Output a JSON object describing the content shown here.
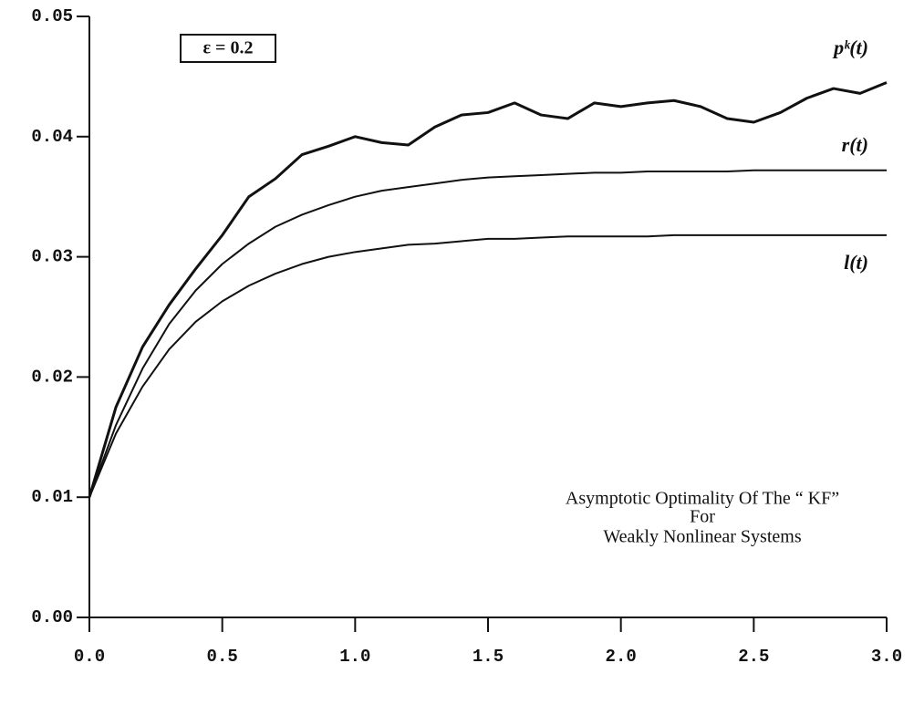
{
  "chart_data": {
    "type": "line",
    "annotations": [
      "ε = 0.2",
      "Asymptotic Optimality Of The “ KF”",
      "For",
      "Weakly Nonlinear Systems"
    ],
    "x": [
      0,
      0.1,
      0.2,
      0.3,
      0.4,
      0.5,
      0.6,
      0.7,
      0.8,
      0.9,
      1.0,
      1.1,
      1.2,
      1.3,
      1.4,
      1.5,
      1.6,
      1.7,
      1.8,
      1.9,
      2.0,
      2.1,
      2.2,
      2.3,
      2.4,
      2.5,
      2.6,
      2.7,
      2.8,
      2.9,
      3.0
    ],
    "series": [
      {
        "name": "pᵏ(t)",
        "color": "#111111",
        "width": 3,
        "values": [
          0.01,
          0.0175,
          0.0225,
          0.026,
          0.029,
          0.0318,
          0.035,
          0.0365,
          0.0385,
          0.0392,
          0.04,
          0.0395,
          0.0393,
          0.0408,
          0.0418,
          0.042,
          0.0428,
          0.0418,
          0.0415,
          0.0428,
          0.0425,
          0.0428,
          0.043,
          0.0425,
          0.0415,
          0.0412,
          0.042,
          0.0432,
          0.044,
          0.0436,
          0.0445
        ]
      },
      {
        "name": "r(t)",
        "color": "#111111",
        "width": 2,
        "values": [
          0.01,
          0.016,
          0.0207,
          0.0244,
          0.0272,
          0.0294,
          0.0311,
          0.0325,
          0.0335,
          0.0343,
          0.035,
          0.0355,
          0.0358,
          0.0361,
          0.0364,
          0.0366,
          0.0367,
          0.0368,
          0.0369,
          0.037,
          0.037,
          0.0371,
          0.0371,
          0.0371,
          0.0371,
          0.0372,
          0.0372,
          0.0372,
          0.0372,
          0.0372,
          0.0372
        ]
      },
      {
        "name": "l(t)",
        "color": "#111111",
        "width": 2,
        "values": [
          0.01,
          0.0153,
          0.0192,
          0.0223,
          0.0246,
          0.0263,
          0.0276,
          0.0286,
          0.0294,
          0.03,
          0.0304,
          0.0307,
          0.031,
          0.0311,
          0.0313,
          0.0315,
          0.0315,
          0.0316,
          0.0317,
          0.0317,
          0.0317,
          0.0317,
          0.0318,
          0.0318,
          0.0318,
          0.0318,
          0.0318,
          0.0318,
          0.0318,
          0.0318,
          0.0318
        ]
      }
    ],
    "xlim": [
      0,
      3.0
    ],
    "ylim": [
      0,
      0.05
    ],
    "xticks": [
      {
        "value": 0,
        "label": "0.0"
      },
      {
        "value": 0.5,
        "label": "0.5"
      },
      {
        "value": 1.0,
        "label": "1.0"
      },
      {
        "value": 1.5,
        "label": "1.5"
      },
      {
        "value": 2.0,
        "label": "2.0"
      },
      {
        "value": 2.5,
        "label": "2.5"
      },
      {
        "value": 3.0,
        "label": "3.0"
      }
    ],
    "yticks": [
      {
        "value": 0,
        "label": "0.00"
      },
      {
        "value": 0.01,
        "label": "0.01"
      },
      {
        "value": 0.02,
        "label": "0.02"
      },
      {
        "value": 0.03,
        "label": "0.03"
      },
      {
        "value": 0.04,
        "label": "0.04"
      },
      {
        "value": 0.05,
        "label": "0.05"
      }
    ],
    "grid": false
  }
}
